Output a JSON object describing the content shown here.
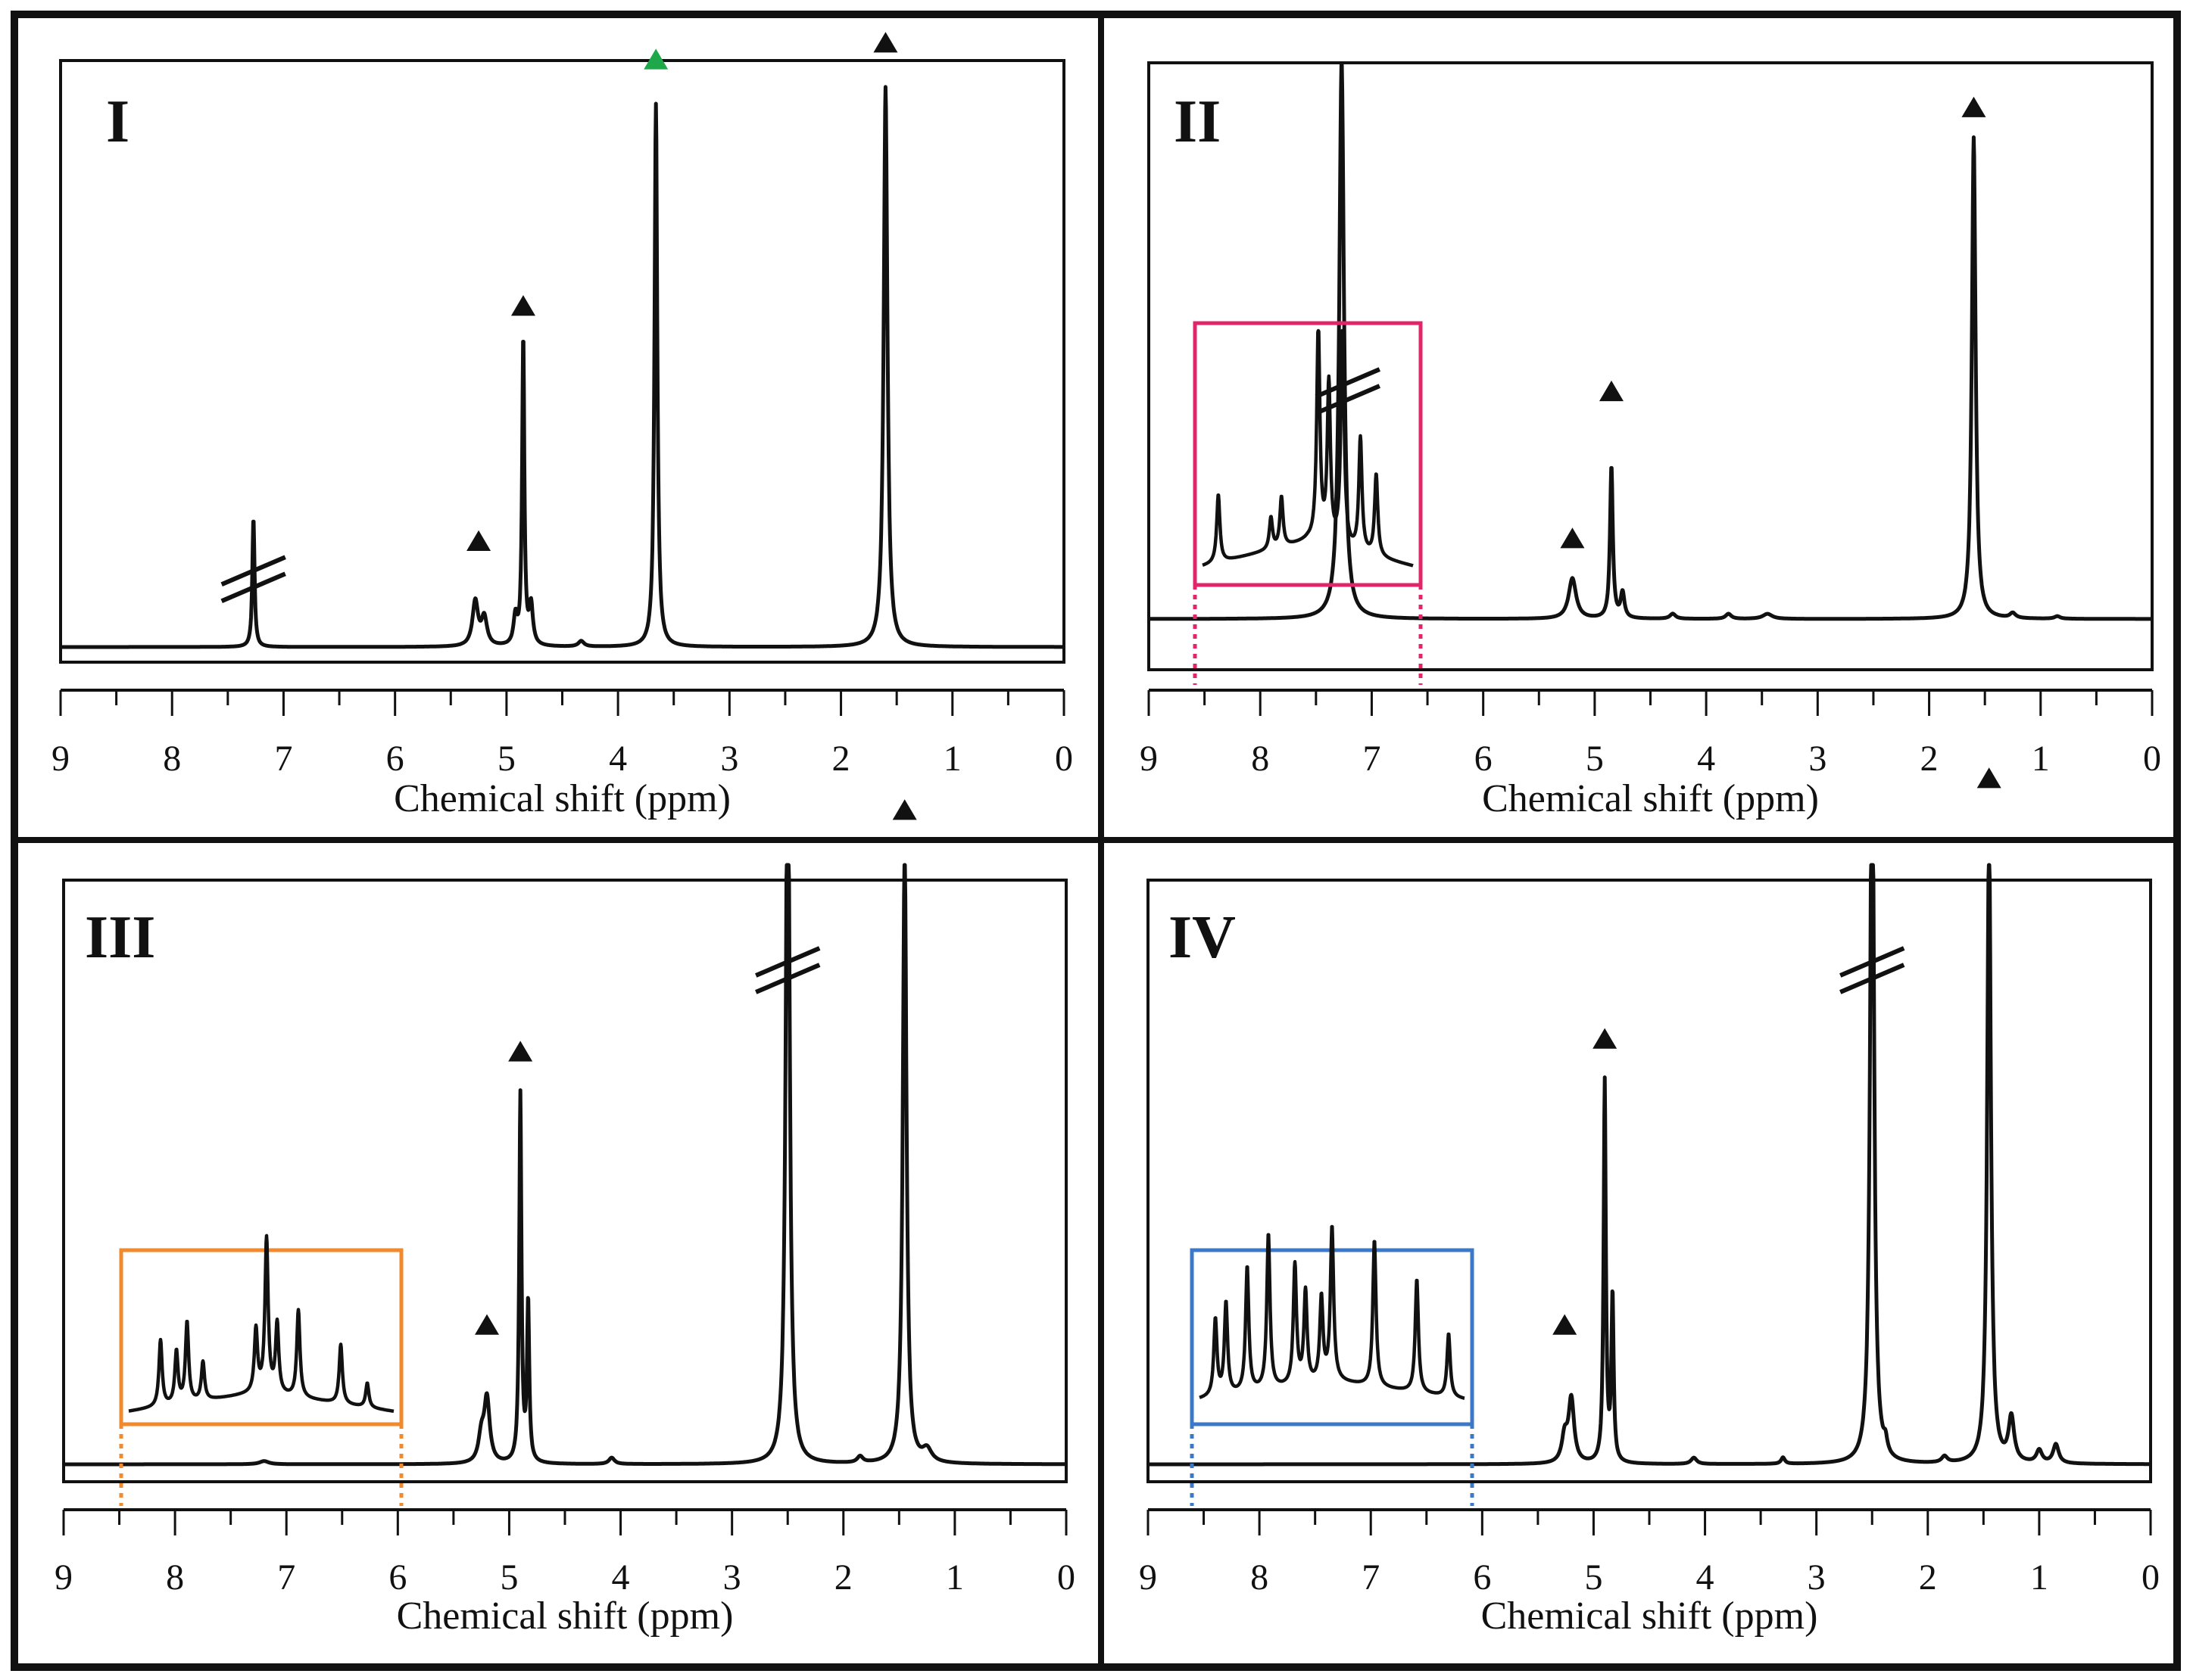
{
  "figure": {
    "type": "1H NMR spectra",
    "layout": "2x2 grid"
  },
  "colors": {
    "ink": "#111111",
    "green_marker": "#1fa84a",
    "inset_II": "#e2246a",
    "inset_III": "#f08a2c",
    "inset_IV": "#3c78c8"
  },
  "chart_data": [
    {
      "type": "line",
      "panel": "I",
      "title": "I",
      "xlabel": "Chemical shift (ppm)",
      "xlim": [
        9,
        0
      ],
      "xticks": [
        "9",
        "8",
        "7",
        "6",
        "5",
        "4",
        "3",
        "2",
        "1",
        "0"
      ],
      "ylim": [
        0,
        1
      ],
      "grid": false,
      "peaks": [
        {
          "ppm": 7.27,
          "height": 0.23,
          "width": 0.012,
          "broken": true
        },
        {
          "ppm": 5.28,
          "height": 0.08,
          "width": 0.03
        },
        {
          "ppm": 5.2,
          "height": 0.05,
          "width": 0.03
        },
        {
          "ppm": 4.92,
          "height": 0.05,
          "width": 0.02
        },
        {
          "ppm": 4.85,
          "height": 0.55,
          "width": 0.012
        },
        {
          "ppm": 4.78,
          "height": 0.07,
          "width": 0.02
        },
        {
          "ppm": 4.33,
          "height": 0.01,
          "width": 0.03
        },
        {
          "ppm": 3.66,
          "height": 0.97,
          "width": 0.015
        },
        {
          "ppm": 1.6,
          "height": 1.0,
          "width": 0.02
        }
      ],
      "markers": [
        {
          "ppm": 5.25,
          "height": 0.19,
          "color": "black"
        },
        {
          "ppm": 4.85,
          "height": 0.61,
          "color": "black"
        },
        {
          "ppm": 3.66,
          "height": 1.05,
          "color": "green"
        },
        {
          "ppm": 1.6,
          "height": 1.08,
          "color": "black"
        }
      ]
    },
    {
      "type": "line",
      "panel": "II",
      "title": "II",
      "xlabel": "Chemical shift (ppm)",
      "xlim": [
        9,
        0
      ],
      "xticks": [
        "9",
        "8",
        "7",
        "6",
        "5",
        "4",
        "3",
        "2",
        "1",
        "0"
      ],
      "ylim": [
        0,
        1
      ],
      "grid": false,
      "peaks": [
        {
          "ppm": 7.27,
          "height": 1.1,
          "width": 0.025,
          "broken": false
        },
        {
          "ppm": 5.2,
          "height": 0.08,
          "width": 0.04
        },
        {
          "ppm": 4.85,
          "height": 0.3,
          "width": 0.015
        },
        {
          "ppm": 4.75,
          "height": 0.05,
          "width": 0.02
        },
        {
          "ppm": 4.3,
          "height": 0.01,
          "width": 0.03
        },
        {
          "ppm": 3.8,
          "height": 0.01,
          "width": 0.03
        },
        {
          "ppm": 3.45,
          "height": 0.01,
          "width": 0.05
        },
        {
          "ppm": 1.6,
          "height": 0.95,
          "width": 0.02
        },
        {
          "ppm": 1.25,
          "height": 0.01,
          "width": 0.03
        },
        {
          "ppm": 0.85,
          "height": 0.005,
          "width": 0.03
        }
      ],
      "markers": [
        {
          "ppm": 5.2,
          "height": 0.16,
          "color": "black"
        },
        {
          "ppm": 4.85,
          "height": 0.45,
          "color": "black"
        },
        {
          "ppm": 1.6,
          "height": 1.01,
          "color": "black"
        }
      ],
      "inset": {
        "color": "pink",
        "range_ppm": [
          8.6,
          6.6
        ],
        "breaks": true,
        "peaks": [
          {
            "ppm": 8.45,
            "height": 0.3
          },
          {
            "ppm": 7.95,
            "height": 0.14
          },
          {
            "ppm": 7.85,
            "height": 0.22
          },
          {
            "ppm": 7.5,
            "height": 0.95
          },
          {
            "ppm": 7.4,
            "height": 0.7
          },
          {
            "ppm": 7.27,
            "height": 1.0
          },
          {
            "ppm": 7.1,
            "height": 0.5
          },
          {
            "ppm": 6.95,
            "height": 0.36
          }
        ]
      }
    },
    {
      "type": "line",
      "panel": "III",
      "title": "III",
      "xlabel": "Chemical shift (ppm)",
      "xlim": [
        9,
        0
      ],
      "xticks": [
        "9",
        "8",
        "7",
        "6",
        "5",
        "4",
        "3",
        "2",
        "1",
        "0"
      ],
      "ylim": [
        0,
        1
      ],
      "grid": false,
      "peaks": [
        {
          "ppm": 7.2,
          "height": 0.005,
          "width": 0.05
        },
        {
          "ppm": 5.2,
          "height": 0.1,
          "width": 0.03
        },
        {
          "ppm": 5.25,
          "height": 0.04,
          "width": 0.03
        },
        {
          "ppm": 4.9,
          "height": 0.58,
          "width": 0.012
        },
        {
          "ppm": 4.83,
          "height": 0.25,
          "width": 0.012
        },
        {
          "ppm": 4.08,
          "height": 0.01,
          "width": 0.03
        },
        {
          "ppm": 2.5,
          "height": 1.25,
          "width": 0.02,
          "broken": true
        },
        {
          "ppm": 1.85,
          "height": 0.01,
          "width": 0.03
        },
        {
          "ppm": 1.45,
          "height": 0.97,
          "width": 0.02
        },
        {
          "ppm": 1.25,
          "height": 0.02,
          "width": 0.05
        }
      ],
      "markers": [
        {
          "ppm": 5.2,
          "height": 0.22,
          "color": "black"
        },
        {
          "ppm": 4.9,
          "height": 0.65,
          "color": "black"
        },
        {
          "ppm": 1.45,
          "height": 1.03,
          "color": "black"
        }
      ],
      "inset": {
        "color": "orange",
        "range_ppm": [
          8.5,
          6.0
        ],
        "breaks": false,
        "peaks": [
          {
            "ppm": 8.2,
            "height": 0.38
          },
          {
            "ppm": 8.05,
            "height": 0.3
          },
          {
            "ppm": 7.95,
            "height": 0.46
          },
          {
            "ppm": 7.8,
            "height": 0.22
          },
          {
            "ppm": 7.3,
            "height": 0.36
          },
          {
            "ppm": 7.2,
            "height": 0.88
          },
          {
            "ppm": 7.1,
            "height": 0.4
          },
          {
            "ppm": 6.9,
            "height": 0.5
          },
          {
            "ppm": 6.5,
            "height": 0.34
          },
          {
            "ppm": 6.25,
            "height": 0.14
          }
        ]
      }
    },
    {
      "type": "line",
      "panel": "IV",
      "title": "IV",
      "xlabel": "Chemical shift (ppm)",
      "xlim": [
        9,
        0
      ],
      "xticks": [
        "9",
        "8",
        "7",
        "6",
        "5",
        "4",
        "3",
        "2",
        "1",
        "0"
      ],
      "ylim": [
        0,
        1
      ],
      "grid": false,
      "peaks": [
        {
          "ppm": 5.2,
          "height": 0.1,
          "width": 0.03
        },
        {
          "ppm": 5.26,
          "height": 0.04,
          "width": 0.03
        },
        {
          "ppm": 4.9,
          "height": 0.6,
          "width": 0.012
        },
        {
          "ppm": 4.83,
          "height": 0.26,
          "width": 0.012
        },
        {
          "ppm": 4.1,
          "height": 0.01,
          "width": 0.03
        },
        {
          "ppm": 3.3,
          "height": 0.01,
          "width": 0.02
        },
        {
          "ppm": 2.5,
          "height": 1.25,
          "width": 0.02,
          "broken": true
        },
        {
          "ppm": 2.38,
          "height": 0.02,
          "width": 0.02
        },
        {
          "ppm": 1.85,
          "height": 0.01,
          "width": 0.03
        },
        {
          "ppm": 1.45,
          "height": 1.0,
          "width": 0.02
        },
        {
          "ppm": 1.25,
          "height": 0.07,
          "width": 0.03
        },
        {
          "ppm": 1.0,
          "height": 0.02,
          "width": 0.03
        },
        {
          "ppm": 0.85,
          "height": 0.03,
          "width": 0.03
        }
      ],
      "markers": [
        {
          "ppm": 5.26,
          "height": 0.22,
          "color": "black"
        },
        {
          "ppm": 4.9,
          "height": 0.67,
          "color": "black"
        },
        {
          "ppm": 1.45,
          "height": 1.08,
          "color": "black"
        }
      ],
      "inset": {
        "color": "blue",
        "range_ppm": [
          8.6,
          6.1
        ],
        "breaks": false,
        "peaks": [
          {
            "ppm": 8.45,
            "height": 0.46
          },
          {
            "ppm": 8.35,
            "height": 0.55
          },
          {
            "ppm": 8.15,
            "height": 0.75
          },
          {
            "ppm": 7.95,
            "height": 0.93
          },
          {
            "ppm": 7.7,
            "height": 0.72
          },
          {
            "ppm": 7.6,
            "height": 0.55
          },
          {
            "ppm": 7.45,
            "height": 0.5
          },
          {
            "ppm": 7.35,
            "height": 0.92
          },
          {
            "ppm": 6.95,
            "height": 0.88
          },
          {
            "ppm": 6.55,
            "height": 0.68
          },
          {
            "ppm": 6.25,
            "height": 0.38
          }
        ]
      }
    }
  ]
}
